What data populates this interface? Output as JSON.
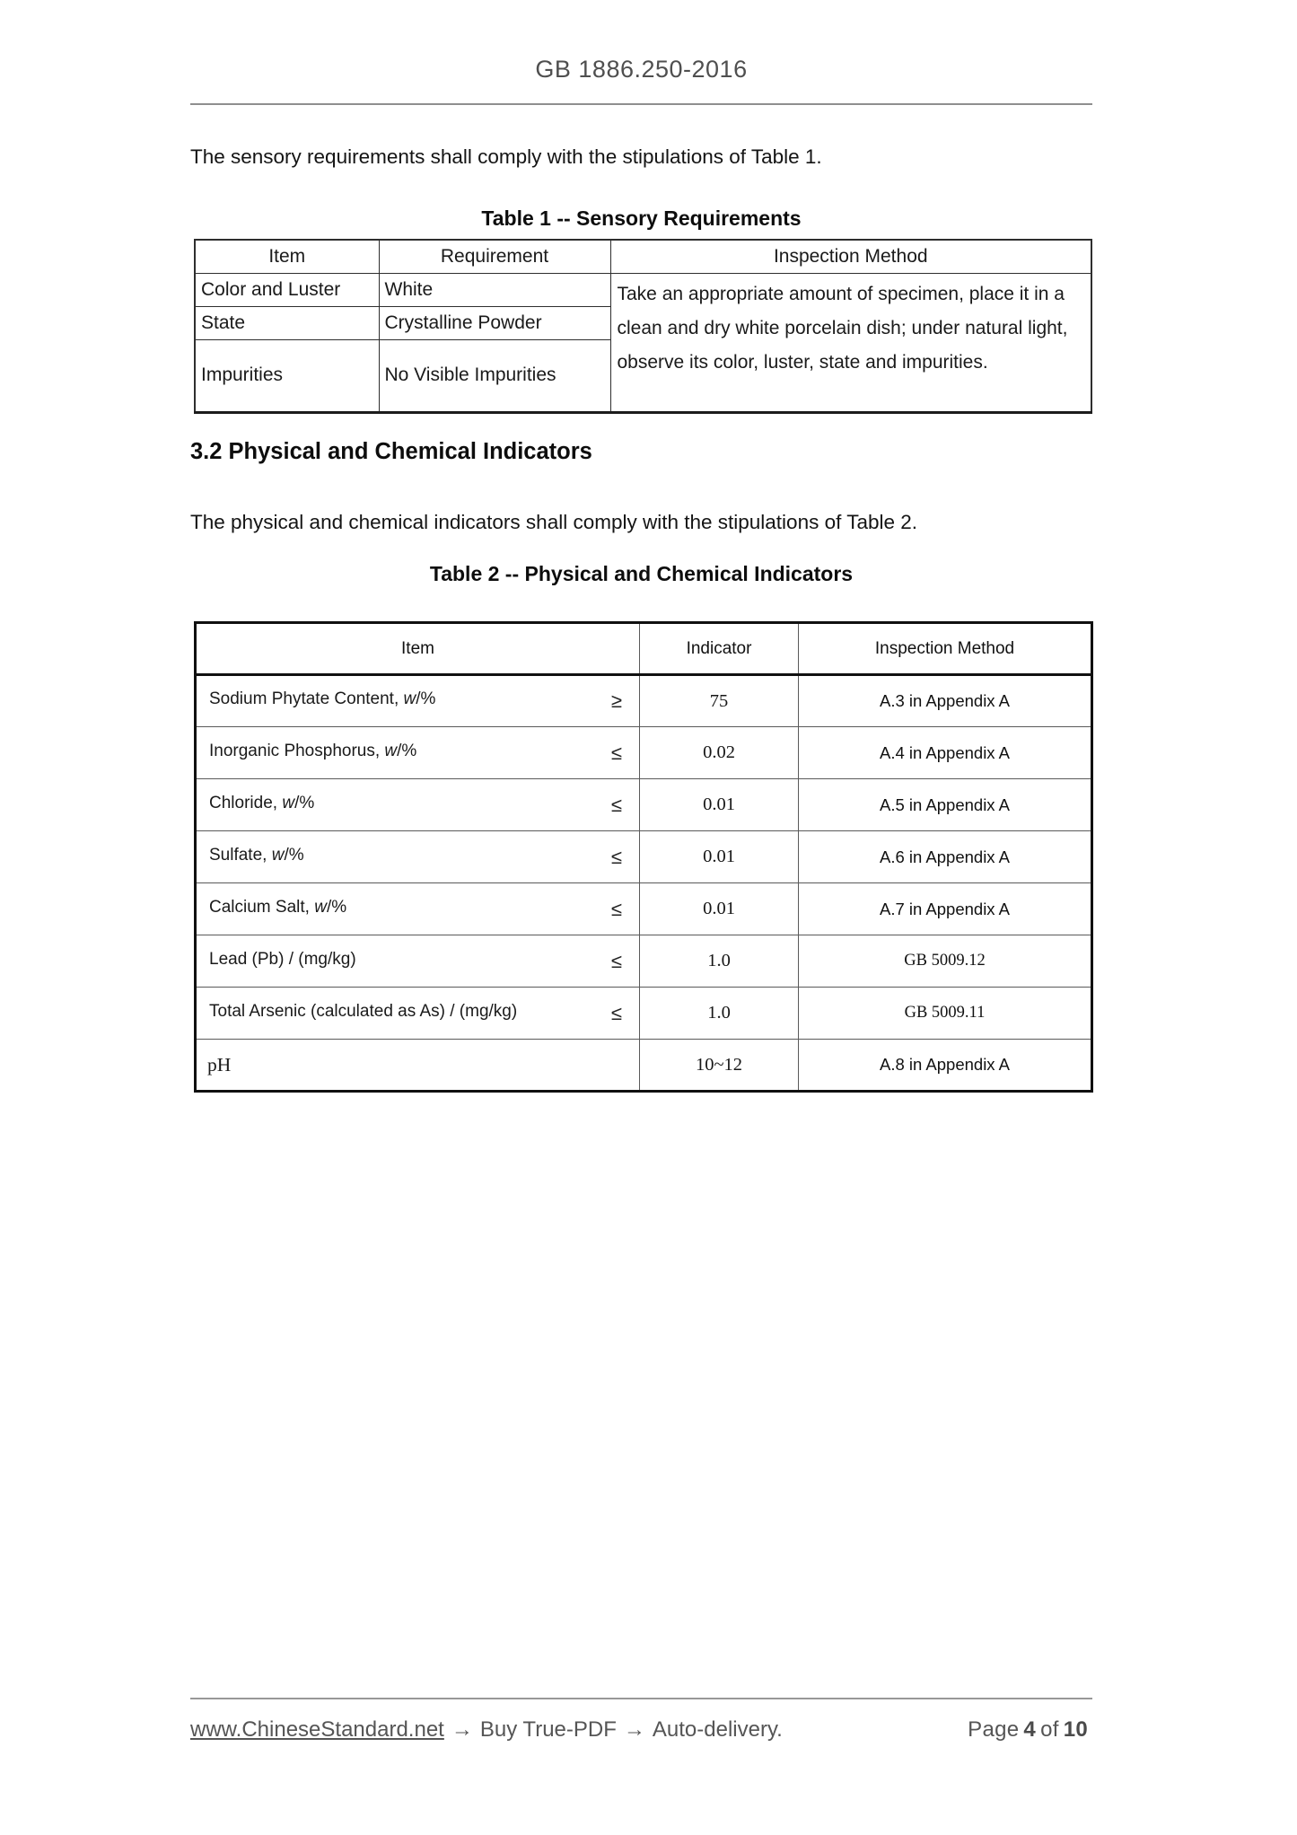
{
  "header": {
    "title": "GB 1886.250-2016"
  },
  "paragraphs": {
    "sensory": "The sensory requirements shall comply with the stipulations of Table 1.",
    "physchem": "The physical and chemical indicators shall comply with the stipulations of Table 2."
  },
  "section": {
    "heading": "3.2 Physical and Chemical Indicators"
  },
  "table1": {
    "caption": "Table 1 -- Sensory Requirements",
    "columns": [
      "Item",
      "Requirement",
      "Inspection Method"
    ],
    "rows": [
      {
        "item": "Color and Luster",
        "requirement": "White"
      },
      {
        "item": "State",
        "requirement": "Crystalline Powder"
      },
      {
        "item": "Impurities",
        "requirement": "No Visible Impurities"
      }
    ],
    "inspection_method": "Take an appropriate amount of specimen, place it in a clean and dry white porcelain dish; under natural light, observe its color, luster, state and impurities."
  },
  "table2": {
    "caption": "Table 2 -- Physical and Chemical Indicators",
    "columns": [
      "Item",
      "Indicator",
      "Inspection Method"
    ],
    "rows": [
      {
        "item": "Sodium Phytate Content, w/%",
        "symbol": "≥",
        "indicator": "75",
        "method": "A.3 in Appendix A"
      },
      {
        "item": "Inorganic Phosphorus, w/%",
        "symbol": "≤",
        "indicator": "0.02",
        "method": "A.4 in Appendix A"
      },
      {
        "item": "Chloride, w/%",
        "symbol": "≤",
        "indicator": "0.01",
        "method": "A.5 in Appendix A"
      },
      {
        "item": "Sulfate, w/%",
        "symbol": "≤",
        "indicator": "0.01",
        "method": "A.6 in Appendix A"
      },
      {
        "item": "Calcium Salt, w/%",
        "symbol": "≤",
        "indicator": "0.01",
        "method": "A.7 in Appendix A"
      },
      {
        "item": "Lead (Pb) / (mg/kg)",
        "symbol": "≤",
        "indicator": "1.0",
        "method": "GB 5009.12"
      },
      {
        "item": "Total Arsenic (calculated as As) / (mg/kg)",
        "symbol": "≤",
        "indicator": "1.0",
        "method": "GB 5009.11"
      },
      {
        "item": "pH",
        "symbol": "",
        "indicator": "10~12",
        "method": "A.8 in Appendix A"
      }
    ]
  },
  "footer": {
    "link": "www.ChineseStandard.net",
    "arrow": "→",
    "buy": "Buy True-PDF",
    "delivery": "Auto-delivery.",
    "page_label": "Page",
    "page_current": "4",
    "of_label": "of",
    "page_total": "10"
  }
}
